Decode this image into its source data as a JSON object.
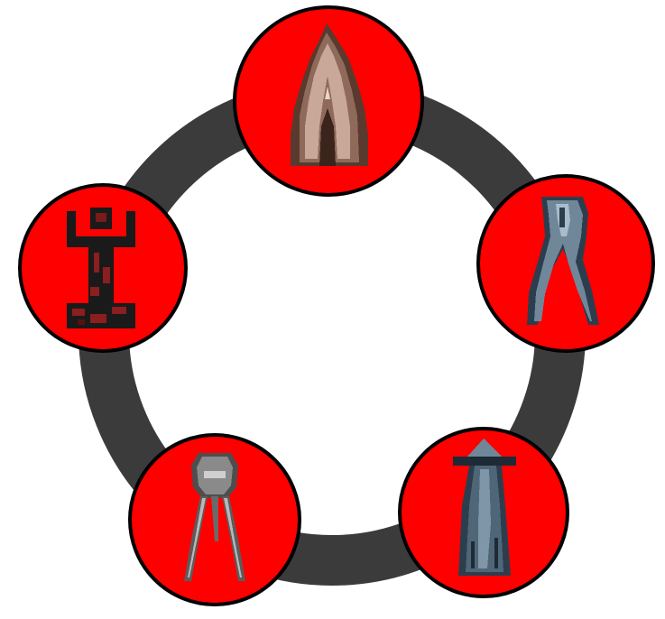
{
  "colors": {
    "background": "#ffffff",
    "ring": "#3b3b3b",
    "node_fill": "#ff0000",
    "node_stroke": "#000000"
  },
  "nodes": [
    {
      "name": "brown-spire-icon",
      "icon": "brown-spire"
    },
    {
      "name": "pincer-arch-icon",
      "icon": "grey-blue-pincer"
    },
    {
      "name": "mushroom-tower-icon",
      "icon": "mushroom-tower"
    },
    {
      "name": "tripod-walker-icon",
      "icon": "grey-tripod"
    },
    {
      "name": "totem-figure-icon",
      "icon": "black-red-totem"
    }
  ]
}
